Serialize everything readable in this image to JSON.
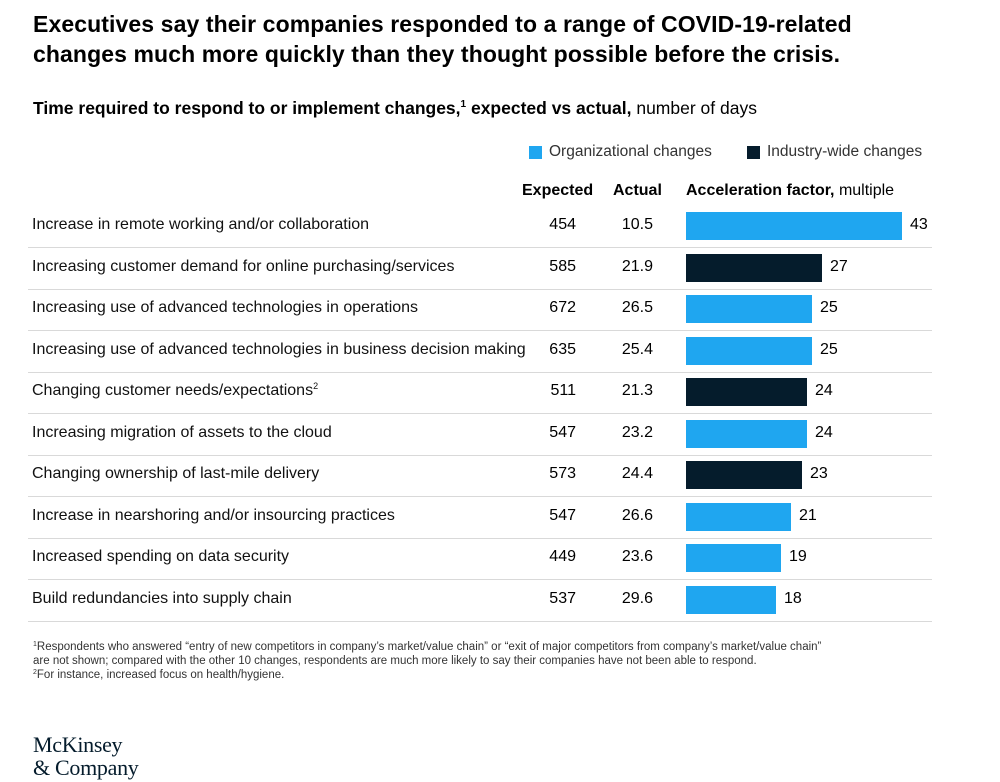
{
  "title_line1": "Executives say their companies responded to a range of COVID-19-related",
  "title_line2": "changes much more quickly than they thought possible before the crisis.",
  "subtitle": {
    "bold_part1": "Time required to respond to or implement changes,",
    "sup": "1",
    "bold_part2": " expected vs actual,",
    "light_part": " number of days"
  },
  "legend": {
    "organizational": "Organizational changes",
    "industry": "Industry-wide changes"
  },
  "colors": {
    "organizational": "#1fa6f0",
    "industry": "#051c2c"
  },
  "columns": {
    "expected": "Expected",
    "actual": "Actual",
    "accel_bold": "Acceleration factor,",
    "accel_light": " multiple"
  },
  "chart_data": {
    "type": "bar",
    "orientation": "horizontal",
    "xlim": [
      0,
      43
    ],
    "categories": [
      "Increase in remote working and/or collaboration",
      "Increasing customer demand for online purchasing/services",
      "Increasing use of advanced technologies in operations",
      "Increasing use of advanced technologies in business decision making",
      "Changing customer needs/expectations",
      "Increasing migration of assets to the cloud",
      "Changing ownership of last-mile delivery",
      "Increase in nearshoring and/or insourcing practices",
      "Increased spending on data security",
      "Build redundancies into supply chain"
    ],
    "category_sups": [
      "",
      "",
      "",
      "",
      "2",
      "",
      "",
      "",
      "",
      ""
    ],
    "expected": [
      "454",
      "585",
      "672",
      "635",
      "511",
      "547",
      "573",
      "547",
      "449",
      "537"
    ],
    "actual": [
      "10.5",
      "21.9",
      "26.5",
      "25.4",
      "21.3",
      "23.2",
      "24.4",
      "26.6",
      "23.6",
      "29.6"
    ],
    "values": [
      43,
      27,
      25,
      25,
      24,
      24,
      23,
      21,
      19,
      18
    ],
    "types": [
      "organizational",
      "industry",
      "organizational",
      "organizational",
      "industry",
      "organizational",
      "industry",
      "organizational",
      "organizational",
      "organizational"
    ]
  },
  "footnotes": {
    "f1_sup": "1",
    "f1_line1": "Respondents who answered “entry of new competitors in company’s market/value chain” or “exit of major competitors from company’s market/value chain”",
    "f1_line2": " are not shown; compared with the other 10 changes, respondents are much more likely to say their companies have not been able to respond.",
    "f2_sup": "2",
    "f2_text": "For instance, increased focus on health/hygiene."
  },
  "logo": {
    "line1": "McKinsey",
    "line2": "& Company"
  }
}
